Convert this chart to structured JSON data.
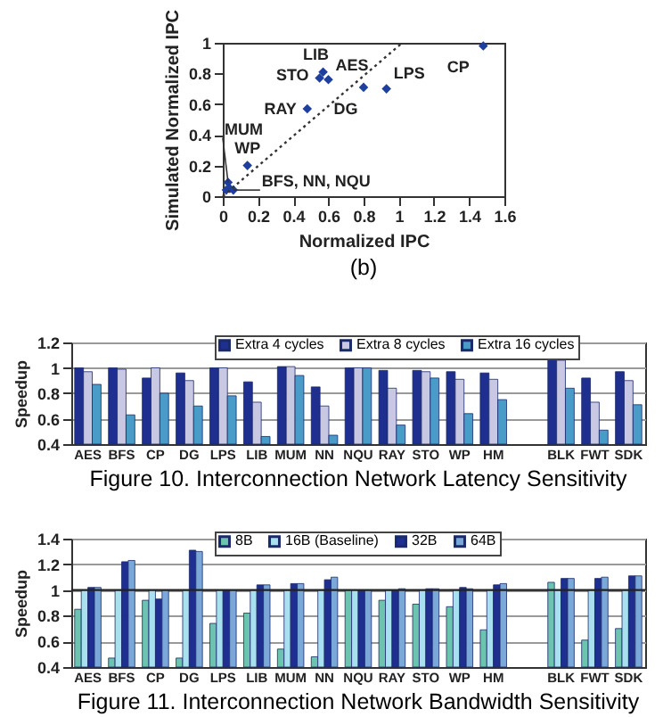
{
  "chart_data": [
    {
      "type": "scatter",
      "title": "(b)",
      "xlabel": "Normalized IPC",
      "ylabel": "Simulated Normalized IPC",
      "xlim": [
        0,
        1.6
      ],
      "xticks": [
        0,
        0.2,
        0.4,
        0.6,
        0.8,
        1,
        1.2,
        1.4,
        1.6
      ],
      "ylim": [
        0,
        1
      ],
      "yticks": [
        0,
        0.2,
        0.4,
        0.6,
        0.8,
        1
      ],
      "marker": "diamond",
      "series": [
        {
          "type": "scatter",
          "color": "#1f3f9f",
          "x": [
            1.48,
            0.93,
            0.8,
            0.57,
            0.6,
            0.55,
            0.48,
            0.14,
            0.03,
            0.02,
            0.04,
            0.06
          ],
          "values": [
            0.98,
            0.7,
            0.71,
            0.81,
            0.76,
            0.77,
            0.57,
            0.2,
            0.09,
            0.04,
            0.05,
            0.04
          ]
        },
        {
          "type": "line",
          "color": "#333333",
          "line_style": "dotted",
          "marker": "none",
          "x": [
            0,
            1.02
          ],
          "values": [
            0,
            1
          ]
        }
      ],
      "annotations": [
        {
          "text": "CP",
          "x": 1.48,
          "y": 0.98
        },
        {
          "text": "LPS",
          "x": 0.93,
          "y": 0.7
        },
        {
          "text": "DG",
          "x": 0.8,
          "y": 0.71
        },
        {
          "text": "LIB",
          "x": 0.57,
          "y": 0.81
        },
        {
          "text": "AES",
          "x": 0.6,
          "y": 0.76
        },
        {
          "text": "STO",
          "x": 0.55,
          "y": 0.77
        },
        {
          "text": "RAY",
          "x": 0.48,
          "y": 0.57
        },
        {
          "text": "WP",
          "x": 0.14,
          "y": 0.2
        },
        {
          "text": "MUM",
          "x": 0.03,
          "y": 0.09
        },
        {
          "text": "BFS, NN, NQU",
          "x": 0.06,
          "y": 0.04
        }
      ]
    },
    {
      "type": "bar",
      "title": "Figure 10.  Interconnection Network Latency Sensitivity",
      "ylabel": "Speedup",
      "ylim": [
        0.4,
        1.2
      ],
      "yticks": [
        0.4,
        0.6,
        0.8,
        1,
        1.2
      ],
      "grid": "y",
      "legend": "top",
      "categories": [
        "AES",
        "BFS",
        "CP",
        "DG",
        "LPS",
        "LIB",
        "MUM",
        "NN",
        "NQU",
        "RAY",
        "STO",
        "WP",
        "HM",
        null,
        "BLK",
        "FWT",
        "SDK"
      ],
      "series": [
        {
          "name": "Extra 4 cycles",
          "color": "#1f2f8f",
          "values": [
            1.0,
            1.0,
            0.92,
            0.96,
            1.0,
            0.89,
            1.01,
            0.85,
            1.0,
            0.98,
            0.98,
            0.97,
            0.96,
            null,
            1.09,
            0.92,
            0.97
          ]
        },
        {
          "name": "Extra 8 cycles",
          "color": "#c8c8e2",
          "values": [
            0.97,
            0.99,
            1.0,
            0.9,
            1.0,
            0.73,
            1.01,
            0.7,
            1.0,
            0.84,
            0.97,
            0.91,
            0.91,
            null,
            1.06,
            0.73,
            0.9
          ]
        },
        {
          "name": "Extra 16 cycles",
          "color": "#4a9cc8",
          "values": [
            0.87,
            0.63,
            0.8,
            0.7,
            0.78,
            0.46,
            0.94,
            0.47,
            1.0,
            0.55,
            0.92,
            0.64,
            0.75,
            null,
            0.84,
            0.51,
            0.71
          ]
        }
      ]
    },
    {
      "type": "bar",
      "title": "Figure 11.  Interconnection Network Bandwidth Sensitivity",
      "ylabel": "Speedup",
      "ylim": [
        0.4,
        1.4
      ],
      "yticks": [
        0.4,
        0.6,
        0.8,
        1,
        1.2,
        1.4
      ],
      "grid": "y",
      "legend": "top",
      "categories": [
        "AES",
        "BFS",
        "CP",
        "DG",
        "LPS",
        "LIB",
        "MUM",
        "NN",
        "NQU",
        "RAY",
        "STO",
        "WP",
        "HM",
        null,
        "BLK",
        "FWT",
        "SDK"
      ],
      "ref_lines": [
        {
          "axis": "y",
          "value": 1,
          "color": "#222222"
        }
      ],
      "series": [
        {
          "name": "8B",
          "color": "#6cc4b0",
          "values": [
            0.85,
            0.47,
            0.92,
            0.47,
            0.74,
            0.82,
            0.54,
            0.48,
            1.0,
            0.92,
            0.89,
            0.87,
            0.69,
            null,
            1.06,
            0.61,
            0.7
          ]
        },
        {
          "name": "16B (Baseline)",
          "color": "#a8e0f0",
          "values": [
            1,
            1,
            1,
            1,
            1,
            1,
            1,
            1,
            1,
            1,
            1,
            1,
            1,
            null,
            1,
            1,
            1
          ]
        },
        {
          "name": "32B",
          "color": "#1f2f8f",
          "values": [
            1.02,
            1.22,
            0.93,
            1.31,
            1.0,
            1.04,
            1.05,
            1.08,
            1.0,
            1.0,
            1.01,
            1.02,
            1.04,
            null,
            1.09,
            1.09,
            1.11
          ]
        },
        {
          "name": "64B",
          "color": "#7aa8d8",
          "values": [
            1.02,
            1.23,
            1.0,
            1.3,
            1.0,
            1.04,
            1.05,
            1.1,
            1.0,
            1.01,
            1.01,
            1.01,
            1.05,
            null,
            1.09,
            1.1,
            1.11
          ]
        }
      ]
    }
  ]
}
